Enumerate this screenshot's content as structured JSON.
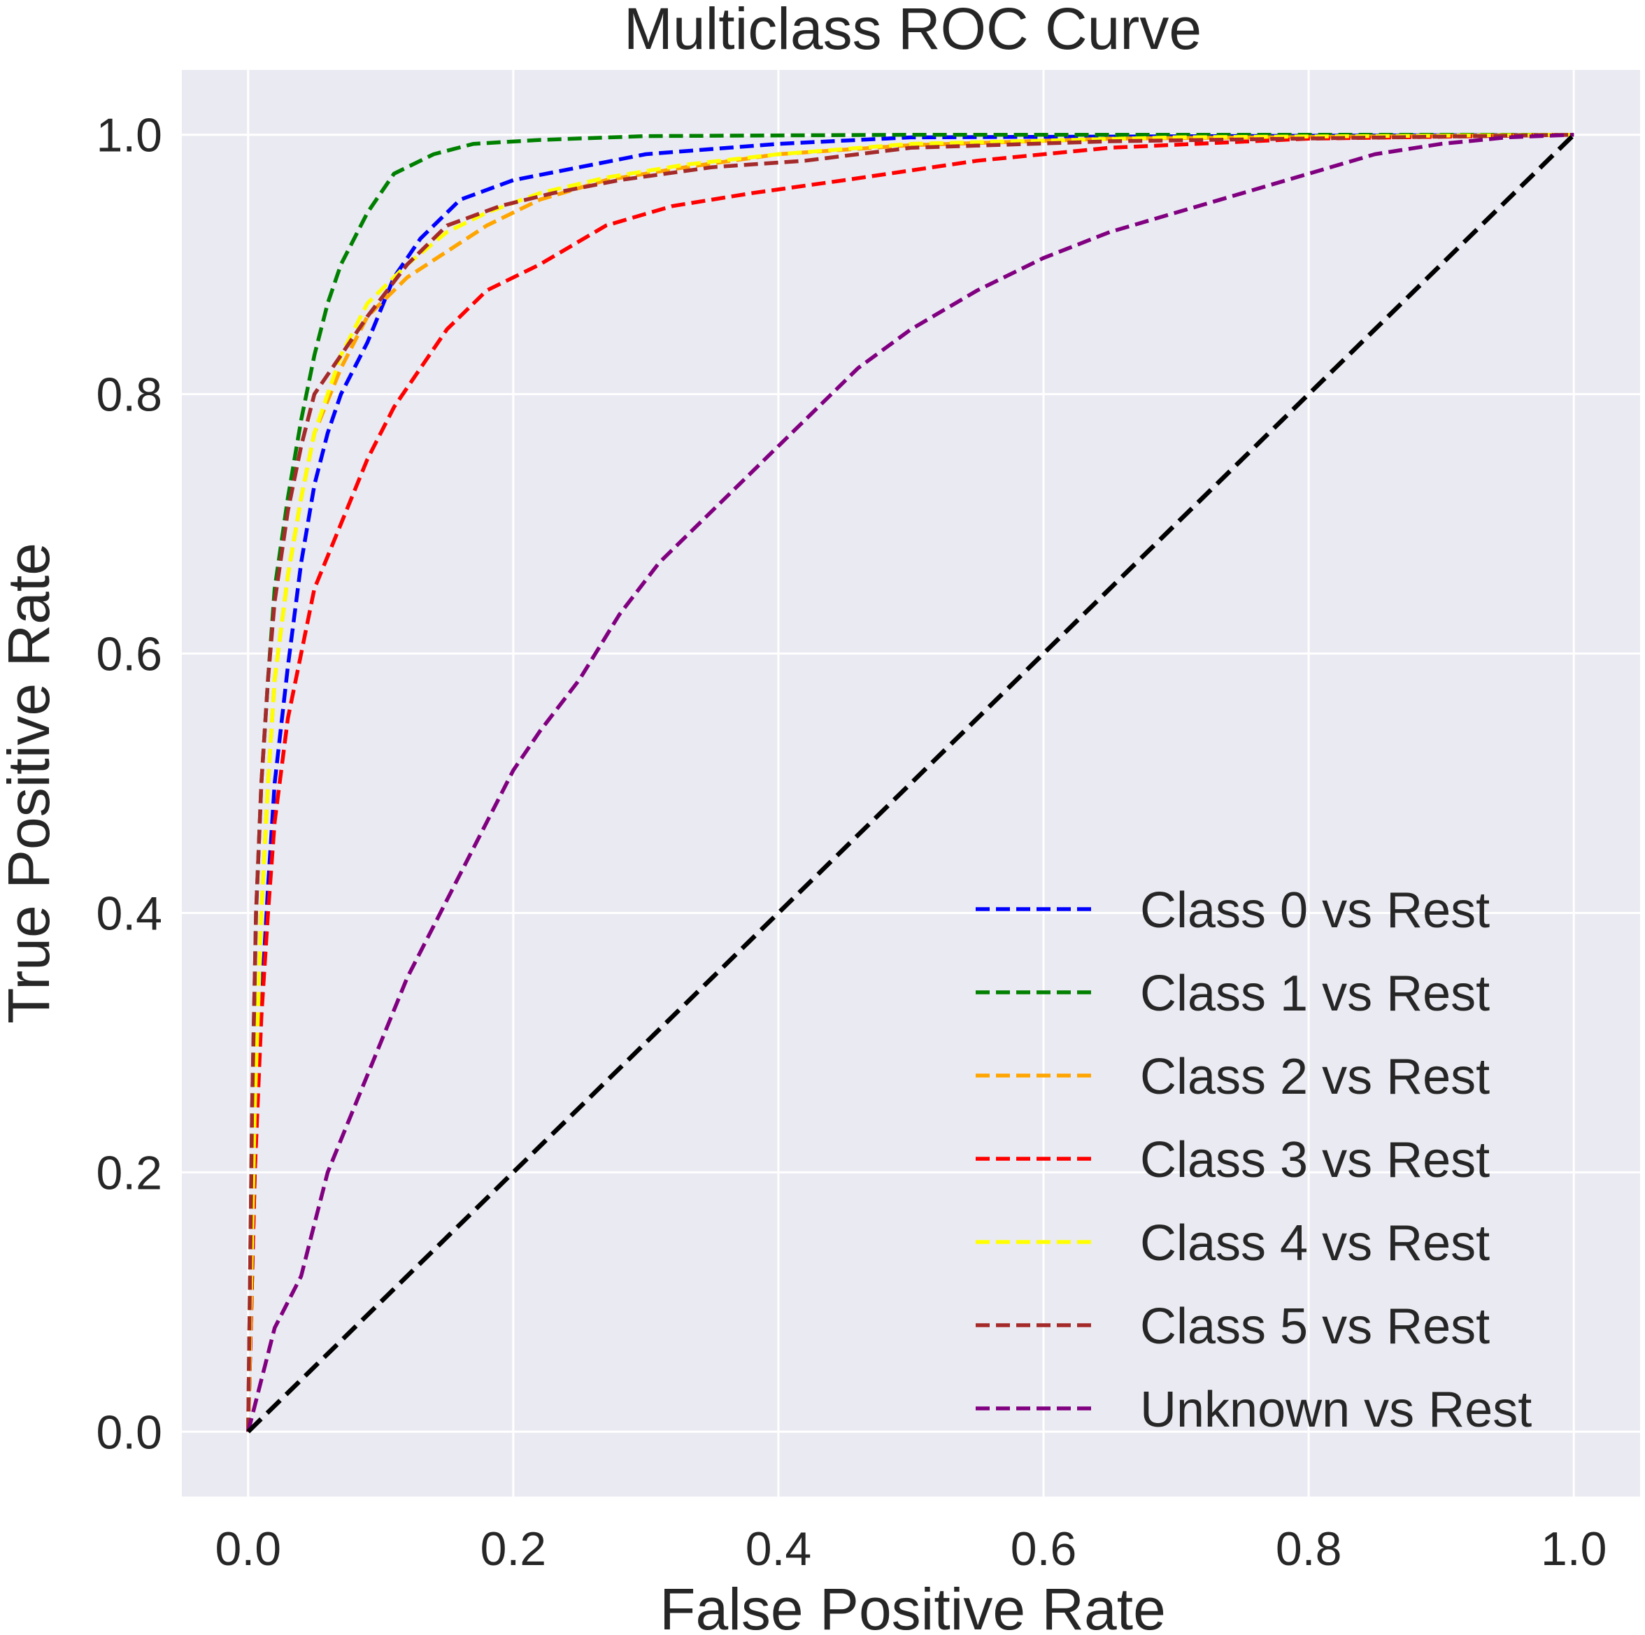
{
  "chart_data": {
    "type": "line",
    "title": "Multiclass ROC Curve",
    "xlabel": "False Positive Rate",
    "ylabel": "True Positive Rate",
    "xlim": [
      -0.05,
      1.05
    ],
    "ylim": [
      -0.05,
      1.05
    ],
    "xticks": [
      0.0,
      0.2,
      0.4,
      0.6,
      0.8,
      1.0
    ],
    "yticks": [
      0.0,
      0.2,
      0.4,
      0.6,
      0.8,
      1.0
    ],
    "xtick_labels": [
      "0.0",
      "0.2",
      "0.4",
      "0.6",
      "0.8",
      "1.0"
    ],
    "ytick_labels": [
      "0.0",
      "0.2",
      "0.4",
      "0.6",
      "0.8",
      "1.0"
    ],
    "grid": true,
    "legend_position": "lower-right",
    "background_color": "#eaeaf2",
    "line_style": "dashed",
    "series": [
      {
        "name": "Class 0 vs Rest",
        "color": "#0000ff",
        "points": [
          [
            0,
            0
          ],
          [
            0.005,
            0.2
          ],
          [
            0.01,
            0.33
          ],
          [
            0.015,
            0.42
          ],
          [
            0.02,
            0.5
          ],
          [
            0.03,
            0.59
          ],
          [
            0.04,
            0.67
          ],
          [
            0.05,
            0.73
          ],
          [
            0.06,
            0.77
          ],
          [
            0.07,
            0.8
          ],
          [
            0.09,
            0.84
          ],
          [
            0.11,
            0.89
          ],
          [
            0.13,
            0.92
          ],
          [
            0.16,
            0.95
          ],
          [
            0.2,
            0.965
          ],
          [
            0.25,
            0.975
          ],
          [
            0.3,
            0.985
          ],
          [
            0.4,
            0.993
          ],
          [
            0.5,
            0.998
          ],
          [
            1,
            1
          ]
        ]
      },
      {
        "name": "Class 1 vs Rest",
        "color": "#008000",
        "points": [
          [
            0,
            0
          ],
          [
            0.003,
            0.25
          ],
          [
            0.006,
            0.4
          ],
          [
            0.01,
            0.5
          ],
          [
            0.015,
            0.58
          ],
          [
            0.02,
            0.65
          ],
          [
            0.03,
            0.72
          ],
          [
            0.04,
            0.78
          ],
          [
            0.05,
            0.83
          ],
          [
            0.06,
            0.87
          ],
          [
            0.07,
            0.9
          ],
          [
            0.09,
            0.94
          ],
          [
            0.11,
            0.97
          ],
          [
            0.14,
            0.985
          ],
          [
            0.17,
            0.993
          ],
          [
            0.22,
            0.996
          ],
          [
            0.3,
            0.999
          ],
          [
            0.5,
            1.0
          ],
          [
            1,
            1
          ]
        ]
      },
      {
        "name": "Class 2 vs Rest",
        "color": "#ffa500",
        "points": [
          [
            0,
            0
          ],
          [
            0.005,
            0.25
          ],
          [
            0.01,
            0.4
          ],
          [
            0.015,
            0.5
          ],
          [
            0.02,
            0.58
          ],
          [
            0.03,
            0.66
          ],
          [
            0.04,
            0.72
          ],
          [
            0.05,
            0.77
          ],
          [
            0.07,
            0.82
          ],
          [
            0.09,
            0.86
          ],
          [
            0.12,
            0.89
          ],
          [
            0.15,
            0.91
          ],
          [
            0.18,
            0.93
          ],
          [
            0.22,
            0.95
          ],
          [
            0.27,
            0.965
          ],
          [
            0.33,
            0.975
          ],
          [
            0.4,
            0.985
          ],
          [
            0.5,
            0.992
          ],
          [
            0.65,
            0.997
          ],
          [
            1,
            1
          ]
        ]
      },
      {
        "name": "Class 3 vs Rest",
        "color": "#ff0000",
        "points": [
          [
            0,
            0
          ],
          [
            0.005,
            0.2
          ],
          [
            0.01,
            0.32
          ],
          [
            0.015,
            0.4
          ],
          [
            0.02,
            0.47
          ],
          [
            0.03,
            0.55
          ],
          [
            0.04,
            0.6
          ],
          [
            0.05,
            0.65
          ],
          [
            0.07,
            0.7
          ],
          [
            0.09,
            0.75
          ],
          [
            0.11,
            0.79
          ],
          [
            0.13,
            0.82
          ],
          [
            0.15,
            0.85
          ],
          [
            0.18,
            0.88
          ],
          [
            0.22,
            0.9
          ],
          [
            0.27,
            0.93
          ],
          [
            0.32,
            0.945
          ],
          [
            0.38,
            0.955
          ],
          [
            0.45,
            0.965
          ],
          [
            0.55,
            0.98
          ],
          [
            0.65,
            0.99
          ],
          [
            0.8,
            0.997
          ],
          [
            1,
            1
          ]
        ]
      },
      {
        "name": "Class 4 vs Rest",
        "color": "#ffff00",
        "points": [
          [
            0,
            0
          ],
          [
            0.005,
            0.25
          ],
          [
            0.01,
            0.4
          ],
          [
            0.015,
            0.5
          ],
          [
            0.02,
            0.58
          ],
          [
            0.03,
            0.66
          ],
          [
            0.04,
            0.72
          ],
          [
            0.05,
            0.77
          ],
          [
            0.07,
            0.83
          ],
          [
            0.09,
            0.87
          ],
          [
            0.12,
            0.9
          ],
          [
            0.15,
            0.925
          ],
          [
            0.18,
            0.94
          ],
          [
            0.22,
            0.955
          ],
          [
            0.27,
            0.967
          ],
          [
            0.33,
            0.977
          ],
          [
            0.4,
            0.985
          ],
          [
            0.5,
            0.993
          ],
          [
            0.7,
            0.998
          ],
          [
            1,
            1
          ]
        ]
      },
      {
        "name": "Class 5 vs Rest",
        "color": "#a52a2a",
        "points": [
          [
            0,
            0
          ],
          [
            0.003,
            0.25
          ],
          [
            0.006,
            0.4
          ],
          [
            0.01,
            0.5
          ],
          [
            0.015,
            0.58
          ],
          [
            0.02,
            0.64
          ],
          [
            0.03,
            0.71
          ],
          [
            0.04,
            0.76
          ],
          [
            0.05,
            0.8
          ],
          [
            0.07,
            0.83
          ],
          [
            0.09,
            0.86
          ],
          [
            0.12,
            0.9
          ],
          [
            0.15,
            0.93
          ],
          [
            0.19,
            0.945
          ],
          [
            0.23,
            0.955
          ],
          [
            0.28,
            0.965
          ],
          [
            0.35,
            0.975
          ],
          [
            0.42,
            0.98
          ],
          [
            0.5,
            0.99
          ],
          [
            0.65,
            0.995
          ],
          [
            1,
            1
          ]
        ]
      },
      {
        "name": "Unknown vs Rest",
        "color": "#800080",
        "points": [
          [
            0,
            0
          ],
          [
            0.01,
            0.04
          ],
          [
            0.02,
            0.08
          ],
          [
            0.04,
            0.12
          ],
          [
            0.05,
            0.16
          ],
          [
            0.06,
            0.2
          ],
          [
            0.08,
            0.25
          ],
          [
            0.1,
            0.3
          ],
          [
            0.12,
            0.35
          ],
          [
            0.14,
            0.39
          ],
          [
            0.16,
            0.43
          ],
          [
            0.18,
            0.47
          ],
          [
            0.2,
            0.51
          ],
          [
            0.22,
            0.54
          ],
          [
            0.25,
            0.58
          ],
          [
            0.28,
            0.63
          ],
          [
            0.31,
            0.67
          ],
          [
            0.34,
            0.7
          ],
          [
            0.37,
            0.73
          ],
          [
            0.4,
            0.76
          ],
          [
            0.43,
            0.79
          ],
          [
            0.46,
            0.82
          ],
          [
            0.5,
            0.85
          ],
          [
            0.55,
            0.88
          ],
          [
            0.6,
            0.905
          ],
          [
            0.65,
            0.925
          ],
          [
            0.7,
            0.94
          ],
          [
            0.75,
            0.955
          ],
          [
            0.8,
            0.97
          ],
          [
            0.85,
            0.985
          ],
          [
            0.9,
            0.993
          ],
          [
            0.95,
            0.998
          ],
          [
            1,
            1
          ]
        ]
      }
    ],
    "reference_line": {
      "color": "#000000",
      "points": [
        [
          0,
          0
        ],
        [
          1,
          1
        ]
      ]
    }
  }
}
